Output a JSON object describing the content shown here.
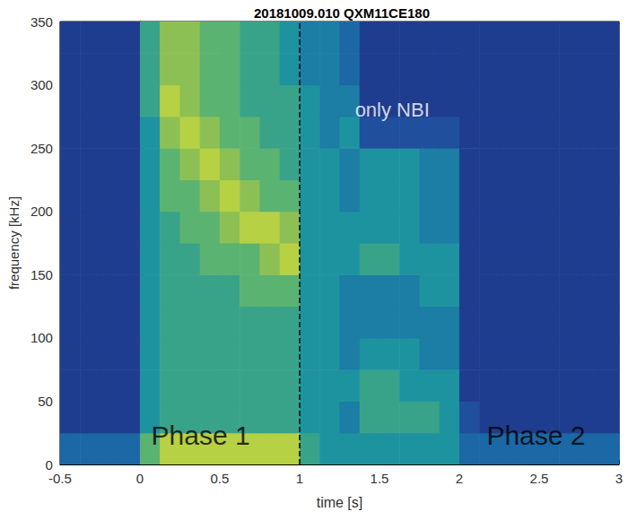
{
  "chart_data": {
    "type": "heatmap",
    "title": "20181009.010 QXM11CE180",
    "xlabel": "time [s]",
    "ylabel": "frequency [kHz]",
    "xlim": [
      -0.5,
      3
    ],
    "ylim": [
      0,
      350
    ],
    "xticks": [
      -0.5,
      0,
      0.5,
      1,
      1.5,
      2,
      2.5,
      3
    ],
    "yticks": [
      0,
      50,
      100,
      150,
      200,
      250,
      300,
      350
    ],
    "grid": false,
    "x": [
      -0.4375,
      -0.3125,
      -0.1875,
      -0.0625,
      0.0625,
      0.1875,
      0.3125,
      0.4375,
      0.5625,
      0.6875,
      0.8125,
      0.9375,
      1.0625,
      1.1875,
      1.3125,
      1.4375,
      1.5625,
      1.6875,
      1.8125,
      1.9375,
      2.0625,
      2.1875,
      2.3125,
      2.4375,
      2.5625,
      2.6875,
      2.8125,
      2.9375
    ],
    "y": [
      12.5,
      37.5,
      62.5,
      87.5,
      112.5,
      137.5,
      162.5,
      187.5,
      212.5,
      237.5,
      262.5,
      287.5,
      312.5,
      337.5
    ],
    "z": [
      [
        3,
        3,
        3,
        3,
        7,
        9,
        9,
        9,
        9,
        9,
        9,
        9,
        6,
        5,
        5,
        5,
        5,
        5,
        5,
        5,
        3,
        3,
        3,
        3,
        3,
        3,
        3,
        3
      ],
      [
        1,
        1,
        1,
        1,
        5,
        6,
        6,
        6,
        6,
        6,
        6,
        6,
        5,
        5,
        4,
        6,
        6,
        6,
        6,
        5,
        2,
        1,
        1,
        1,
        1,
        1,
        1,
        1
      ],
      [
        1,
        1,
        1,
        1,
        5,
        6,
        6,
        6,
        6,
        6,
        6,
        6,
        5,
        5,
        5,
        6,
        6,
        5,
        5,
        5,
        1,
        1,
        1,
        1,
        1,
        1,
        1,
        1
      ],
      [
        1,
        1,
        1,
        1,
        5,
        6,
        6,
        6,
        6,
        6,
        6,
        6,
        5,
        5,
        4,
        5,
        5,
        5,
        4,
        4,
        1,
        1,
        1,
        1,
        1,
        1,
        1,
        1
      ],
      [
        1,
        1,
        1,
        1,
        5,
        6,
        6,
        6,
        6,
        6,
        6,
        6,
        5,
        5,
        4,
        4,
        4,
        4,
        4,
        4,
        1,
        1,
        1,
        1,
        1,
        1,
        1,
        1
      ],
      [
        1,
        1,
        1,
        1,
        5,
        6,
        6,
        6,
        6,
        7,
        7,
        7,
        5,
        5,
        4,
        4,
        4,
        4,
        5,
        5,
        1,
        1,
        1,
        1,
        1,
        1,
        1,
        1
      ],
      [
        1,
        1,
        1,
        1,
        5,
        6,
        6,
        7,
        7,
        7,
        8,
        9,
        5,
        5,
        5,
        6,
        6,
        5,
        5,
        5,
        1,
        1,
        1,
        1,
        1,
        1,
        1,
        1
      ],
      [
        1,
        1,
        1,
        1,
        5,
        6,
        7,
        7,
        8,
        9,
        9,
        8,
        5,
        5,
        5,
        5,
        5,
        5,
        4,
        4,
        1,
        1,
        1,
        1,
        1,
        1,
        1,
        1
      ],
      [
        1,
        1,
        1,
        1,
        5,
        7,
        7,
        8,
        9,
        8,
        7,
        7,
        5,
        5,
        4,
        5,
        5,
        5,
        4,
        4,
        1,
        1,
        1,
        1,
        1,
        1,
        1,
        1
      ],
      [
        1,
        1,
        1,
        1,
        5,
        7,
        8,
        9,
        8,
        7,
        7,
        6,
        5,
        5,
        4,
        5,
        5,
        5,
        4,
        4,
        1,
        1,
        1,
        1,
        1,
        1,
        1,
        1
      ],
      [
        1,
        1,
        1,
        1,
        5,
        8,
        9,
        8,
        7,
        7,
        6,
        6,
        5,
        4,
        5,
        2,
        2,
        2,
        2,
        2,
        1,
        1,
        1,
        1,
        1,
        1,
        1,
        1
      ],
      [
        1,
        1,
        1,
        1,
        6,
        9,
        8,
        7,
        7,
        6,
        6,
        6,
        5,
        4,
        4,
        1,
        1,
        1,
        1,
        1,
        1,
        1,
        1,
        1,
        1,
        1,
        1,
        1
      ],
      [
        1,
        1,
        1,
        1,
        6,
        8,
        8,
        7,
        7,
        6,
        6,
        5,
        4,
        4,
        3,
        1,
        1,
        1,
        1,
        1,
        1,
        1,
        1,
        1,
        1,
        1,
        1,
        1
      ],
      [
        1,
        1,
        1,
        1,
        6,
        8,
        8,
        7,
        7,
        6,
        6,
        5,
        4,
        4,
        3,
        1,
        1,
        1,
        1,
        1,
        1,
        1,
        1,
        1,
        1,
        1,
        1,
        1
      ]
    ],
    "zlim": [
      0,
      10
    ],
    "vline": 1,
    "annotations": [
      {
        "text": "only NBI",
        "x": 1.58,
        "y": 280,
        "color": "#ffffff"
      },
      {
        "text": "Phase 1",
        "x": 0.38,
        "y": 23,
        "color": "#000000"
      },
      {
        "text": "Phase 2",
        "x": 2.48,
        "y": 23,
        "color": "#000000"
      }
    ]
  }
}
